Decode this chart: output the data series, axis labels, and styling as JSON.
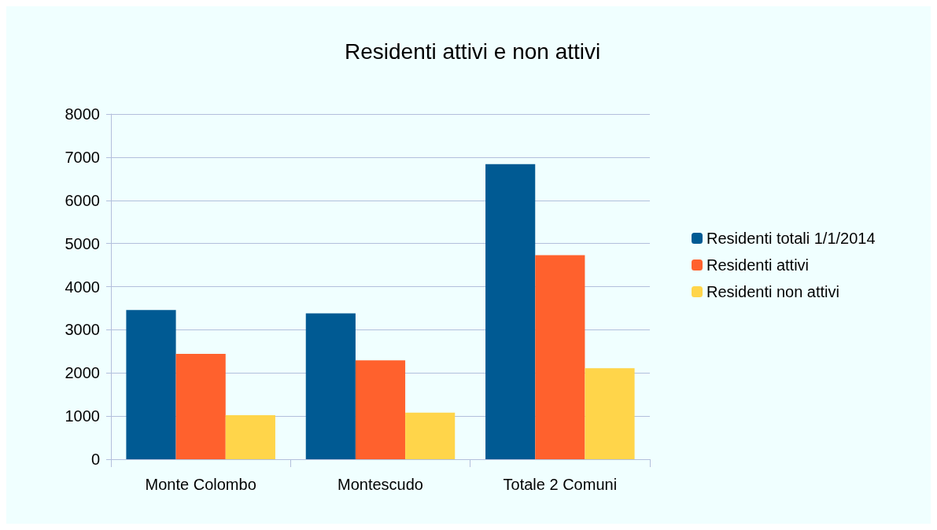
{
  "chart_data": {
    "type": "bar",
    "title": "Residenti attivi e non attivi",
    "categories": [
      "Monte Colombo",
      "Montescudo",
      "Totale 2 Comuni"
    ],
    "series": [
      {
        "name": "Residenti totali 1/1/2014",
        "color": "#005a93",
        "values": [
          3460,
          3380,
          6840
        ]
      },
      {
        "name": "Residenti attivi",
        "color": "#ff612d",
        "values": [
          2440,
          2290,
          4730
        ]
      },
      {
        "name": "Residenti non attivi",
        "color": "#ffd54a",
        "values": [
          1020,
          1080,
          2110
        ]
      }
    ],
    "ylim": [
      0,
      8000
    ],
    "yticks": [
      0,
      1000,
      2000,
      3000,
      4000,
      5000,
      6000,
      7000,
      8000
    ],
    "grid": "y",
    "legend": "right"
  }
}
